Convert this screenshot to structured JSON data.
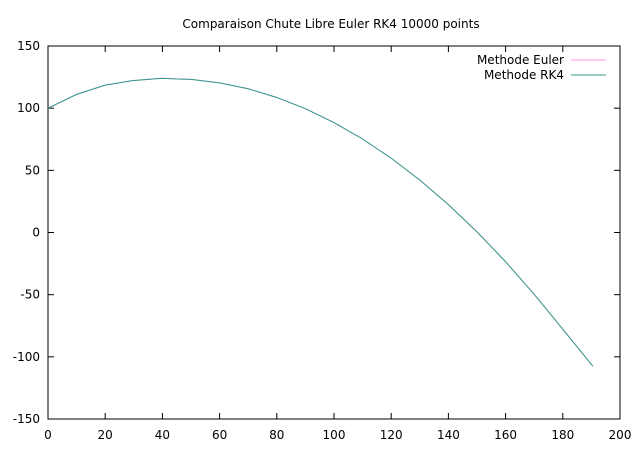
{
  "chart_data": {
    "type": "line",
    "title": "Comparaison Chute Libre Euler RK4 10000 points",
    "xlabel": "",
    "ylabel": "",
    "xlim": [
      0,
      200
    ],
    "ylim": [
      -150,
      150
    ],
    "xticks": [
      0,
      20,
      40,
      60,
      80,
      100,
      120,
      140,
      160,
      180,
      200
    ],
    "yticks": [
      150,
      100,
      50,
      0,
      -50,
      -100,
      -150
    ],
    "grid": false,
    "legend_position": "top-right",
    "series": [
      {
        "name": "Methode Euler",
        "color": "#ff99dd",
        "x": [
          0,
          10,
          20,
          30,
          40,
          45.2,
          50,
          60,
          70,
          80,
          90,
          100,
          110,
          120,
          130,
          140,
          150,
          160,
          170,
          180,
          190.5
        ],
        "y": [
          100,
          111.1,
          118.5,
          122.3,
          124.1,
          123.5,
          123.2,
          120.3,
          115.6,
          108.6,
          99.6,
          88.4,
          75.2,
          59.7,
          42.2,
          22.4,
          0.5,
          -23.5,
          -49.7,
          -77.8,
          -107.5
        ]
      },
      {
        "name": "Methode RK4",
        "color": "#2e9989",
        "x": [
          0,
          10,
          20,
          30,
          40,
          45.2,
          50,
          60,
          70,
          80,
          90,
          100,
          110,
          120,
          130,
          140,
          150,
          160,
          170,
          180,
          190.5
        ],
        "y": [
          100,
          111.1,
          118.5,
          122.3,
          124.1,
          123.5,
          123.2,
          120.3,
          115.6,
          108.6,
          99.6,
          88.4,
          75.2,
          59.7,
          42.2,
          22.4,
          0.5,
          -23.5,
          -49.7,
          -77.8,
          -107.5
        ]
      }
    ]
  }
}
